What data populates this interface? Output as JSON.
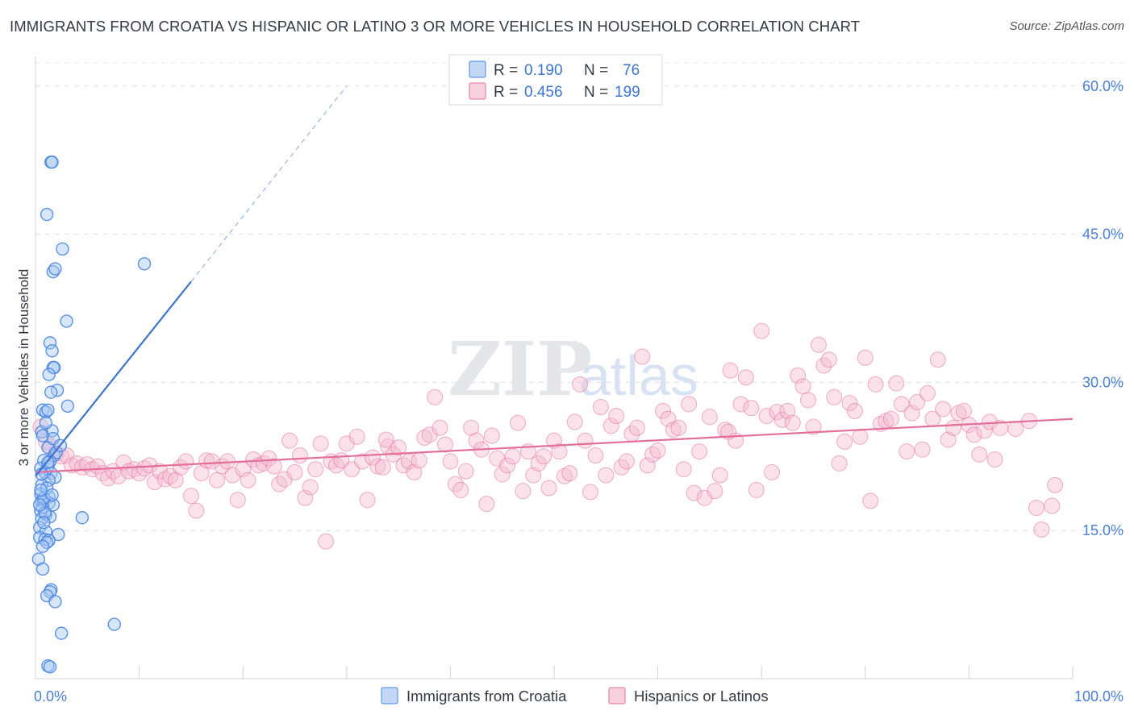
{
  "title": "IMMIGRANTS FROM CROATIA VS HISPANIC OR LATINO 3 OR MORE VEHICLES IN HOUSEHOLD CORRELATION CHART",
  "source": "Source: ZipAtlas.com",
  "watermark": {
    "zip": "ZIP",
    "atlas": "atlas"
  },
  "chart_data": {
    "type": "scatter",
    "xlabel": "",
    "ylabel": "3 or more Vehicles in Household",
    "xlim": [
      0,
      100
    ],
    "ylim": [
      0,
      63
    ],
    "x_tick_labels": [
      {
        "value": 0,
        "label": "0.0%"
      },
      {
        "value": 100,
        "label": "100.0%"
      }
    ],
    "y_ticks": [
      {
        "value": 15,
        "label": "15.0%"
      },
      {
        "value": 30,
        "label": "30.0%"
      },
      {
        "value": 45,
        "label": "45.0%"
      },
      {
        "value": 60,
        "label": "60.0%"
      }
    ],
    "grid": "horizontal dashed",
    "legend_position": "top-center",
    "series": [
      {
        "name": "Immigrants from Croatia",
        "legend_label": "Immigrants from Croatia",
        "color": "#4a86e0",
        "fill": "#a9c8f3",
        "stats": {
          "r_label": "R =",
          "r": "0.190",
          "n_label": "N =",
          "n": "76"
        },
        "trend": {
          "x1": 0,
          "y1": 20.5,
          "x2": 15,
          "y2": 40.2,
          "dash_to_x": 30,
          "dash_to_y": 60
        },
        "points": [
          [
            1.5,
            52.3
          ],
          [
            1.6,
            52.3
          ],
          [
            1.1,
            47.0
          ],
          [
            2.6,
            43.5
          ],
          [
            1.7,
            41.2
          ],
          [
            1.9,
            41.5
          ],
          [
            10.5,
            42.0
          ],
          [
            3.0,
            36.2
          ],
          [
            1.4,
            34.0
          ],
          [
            1.6,
            33.2
          ],
          [
            1.7,
            31.5
          ],
          [
            1.8,
            31.5
          ],
          [
            1.3,
            30.8
          ],
          [
            2.1,
            29.2
          ],
          [
            1.5,
            29.0
          ],
          [
            0.7,
            27.2
          ],
          [
            1.0,
            27.0
          ],
          [
            1.2,
            27.2
          ],
          [
            3.1,
            27.6
          ],
          [
            0.6,
            25.0
          ],
          [
            1.6,
            25.1
          ],
          [
            0.7,
            24.6
          ],
          [
            1.2,
            23.4
          ],
          [
            1.8,
            22.6
          ],
          [
            2.0,
            22.9
          ],
          [
            0.8,
            22.1
          ],
          [
            1.2,
            21.5
          ],
          [
            0.5,
            21.3
          ],
          [
            0.9,
            20.9
          ],
          [
            1.5,
            20.8
          ],
          [
            1.9,
            20.4
          ],
          [
            1.3,
            20.1
          ],
          [
            0.6,
            19.6
          ],
          [
            0.5,
            18.7
          ],
          [
            1.3,
            18.4
          ],
          [
            0.6,
            18.0
          ],
          [
            0.8,
            17.9
          ],
          [
            1.3,
            17.8
          ],
          [
            1.7,
            17.6
          ],
          [
            0.7,
            17.3
          ],
          [
            0.5,
            17.0
          ],
          [
            1.0,
            16.6
          ],
          [
            1.4,
            16.4
          ],
          [
            4.5,
            16.3
          ],
          [
            0.6,
            16.2
          ],
          [
            0.4,
            15.3
          ],
          [
            1.0,
            14.9
          ],
          [
            2.2,
            14.6
          ],
          [
            0.4,
            14.3
          ],
          [
            0.9,
            14.1
          ],
          [
            1.3,
            14.0
          ],
          [
            1.1,
            13.8
          ],
          [
            0.3,
            12.1
          ],
          [
            0.7,
            11.1
          ],
          [
            1.5,
            9.0
          ],
          [
            1.4,
            8.8
          ],
          [
            1.1,
            8.4
          ],
          [
            1.9,
            7.8
          ],
          [
            7.6,
            5.5
          ],
          [
            2.5,
            4.6
          ],
          [
            1.2,
            1.3
          ],
          [
            1.4,
            1.2
          ],
          [
            0.8,
            18.3
          ],
          [
            1.1,
            19.3
          ],
          [
            0.6,
            20.7
          ],
          [
            1.4,
            22.0
          ],
          [
            0.9,
            16.8
          ],
          [
            0.5,
            19.1
          ],
          [
            1.0,
            25.9
          ],
          [
            1.7,
            24.3
          ],
          [
            0.4,
            17.6
          ],
          [
            1.6,
            18.6
          ],
          [
            0.8,
            15.8
          ],
          [
            1.2,
            21.9
          ],
          [
            2.4,
            23.6
          ],
          [
            0.7,
            13.4
          ]
        ]
      },
      {
        "name": "Hispanics or Latinos",
        "legend_label": "Hispanics or Latinos",
        "color": "#e3709a",
        "fill": "#f5bcd0",
        "stats": {
          "r_label": "R =",
          "r": "0.456",
          "n_label": "N =",
          "n": "199"
        },
        "trend": {
          "x1": 0,
          "y1": 20.9,
          "x2": 100,
          "y2": 26.3
        },
        "points": [
          [
            0.5,
            25.5
          ],
          [
            1.0,
            24.0
          ],
          [
            1.5,
            23.5
          ],
          [
            2.0,
            22.8
          ],
          [
            2.5,
            22.5
          ],
          [
            3.0,
            22.6
          ],
          [
            3.5,
            21.6
          ],
          [
            4.0,
            21.8
          ],
          [
            4.5,
            21.4
          ],
          [
            5.0,
            21.7
          ],
          [
            5.5,
            21.2
          ],
          [
            6.0,
            21.5
          ],
          [
            6.5,
            20.8
          ],
          [
            7.0,
            20.3
          ],
          [
            7.5,
            21.0
          ],
          [
            8.0,
            20.5
          ],
          [
            8.5,
            21.9
          ],
          [
            9.0,
            21.0
          ],
          [
            9.5,
            21.2
          ],
          [
            10.0,
            20.8
          ],
          [
            10.5,
            21.3
          ],
          [
            11.0,
            21.6
          ],
          [
            11.5,
            19.9
          ],
          [
            12.0,
            21.0
          ],
          [
            12.5,
            20.2
          ],
          [
            13.0,
            20.5
          ],
          [
            13.5,
            20.1
          ],
          [
            14.0,
            21.4
          ],
          [
            14.5,
            22.0
          ],
          [
            15.0,
            18.5
          ],
          [
            15.5,
            17.0
          ],
          [
            16.0,
            20.8
          ],
          [
            16.5,
            22.1
          ],
          [
            17.0,
            22.0
          ],
          [
            17.5,
            20.1
          ],
          [
            18.0,
            21.5
          ],
          [
            18.5,
            22.0
          ],
          [
            19.0,
            20.6
          ],
          [
            19.5,
            18.1
          ],
          [
            20.0,
            21.2
          ],
          [
            20.5,
            20.1
          ],
          [
            21.0,
            22.2
          ],
          [
            21.5,
            21.6
          ],
          [
            22.0,
            21.8
          ],
          [
            22.5,
            22.3
          ],
          [
            23.0,
            21.5
          ],
          [
            23.5,
            19.7
          ],
          [
            24.0,
            20.2
          ],
          [
            24.5,
            24.1
          ],
          [
            25.0,
            20.9
          ],
          [
            25.5,
            22.6
          ],
          [
            26.0,
            18.3
          ],
          [
            26.5,
            19.4
          ],
          [
            27.0,
            21.2
          ],
          [
            27.5,
            23.8
          ],
          [
            28.0,
            13.9
          ],
          [
            28.5,
            22.0
          ],
          [
            29.0,
            21.6
          ],
          [
            29.5,
            22.1
          ],
          [
            30.0,
            23.8
          ],
          [
            30.5,
            21.2
          ],
          [
            31.0,
            24.5
          ],
          [
            31.5,
            22.0
          ],
          [
            32.0,
            18.1
          ],
          [
            32.5,
            22.4
          ],
          [
            33.0,
            21.5
          ],
          [
            33.5,
            21.4
          ],
          [
            34.0,
            23.5
          ],
          [
            34.5,
            22.7
          ],
          [
            35.0,
            23.4
          ],
          [
            35.5,
            21.6
          ],
          [
            36.0,
            22.0
          ],
          [
            36.5,
            20.9
          ],
          [
            37.0,
            22.1
          ],
          [
            37.5,
            24.4
          ],
          [
            38.0,
            24.7
          ],
          [
            38.5,
            28.5
          ],
          [
            39.0,
            25.4
          ],
          [
            39.5,
            23.7
          ],
          [
            40.0,
            22.0
          ],
          [
            40.5,
            19.7
          ],
          [
            41.0,
            19.1
          ],
          [
            41.5,
            21.0
          ],
          [
            42.0,
            25.4
          ],
          [
            42.5,
            24.1
          ],
          [
            43.0,
            23.2
          ],
          [
            43.5,
            17.7
          ],
          [
            44.0,
            24.6
          ],
          [
            44.5,
            22.3
          ],
          [
            45.0,
            20.7
          ],
          [
            45.5,
            21.6
          ],
          [
            46.0,
            22.5
          ],
          [
            46.5,
            25.9
          ],
          [
            47.0,
            19.0
          ],
          [
            47.5,
            23.0
          ],
          [
            48.0,
            20.6
          ],
          [
            48.5,
            21.8
          ],
          [
            49.0,
            22.5
          ],
          [
            49.5,
            19.3
          ],
          [
            50.0,
            24.1
          ],
          [
            50.5,
            23.0
          ],
          [
            51.0,
            20.5
          ],
          [
            51.5,
            20.8
          ],
          [
            52.0,
            26.0
          ],
          [
            52.5,
            29.8
          ],
          [
            53.0,
            24.1
          ],
          [
            53.5,
            18.9
          ],
          [
            54.0,
            22.6
          ],
          [
            54.5,
            27.5
          ],
          [
            55.0,
            20.6
          ],
          [
            55.5,
            25.6
          ],
          [
            56.0,
            26.6
          ],
          [
            56.5,
            21.4
          ],
          [
            57.0,
            22.0
          ],
          [
            57.5,
            24.8
          ],
          [
            58.0,
            25.4
          ],
          [
            58.5,
            32.6
          ],
          [
            59.0,
            21.6
          ],
          [
            59.5,
            22.7
          ],
          [
            60.0,
            23.1
          ],
          [
            60.5,
            27.1
          ],
          [
            61.0,
            26.3
          ],
          [
            61.5,
            25.2
          ],
          [
            62.0,
            25.4
          ],
          [
            62.5,
            21.2
          ],
          [
            63.0,
            27.8
          ],
          [
            63.5,
            18.8
          ],
          [
            64.0,
            23.0
          ],
          [
            64.5,
            18.3
          ],
          [
            65.0,
            26.5
          ],
          [
            65.5,
            19.0
          ],
          [
            66.0,
            20.6
          ],
          [
            66.5,
            25.2
          ],
          [
            67.0,
            31.2
          ],
          [
            67.5,
            24.1
          ],
          [
            68.0,
            27.8
          ],
          [
            68.5,
            30.5
          ],
          [
            69.0,
            27.4
          ],
          [
            69.5,
            19.1
          ],
          [
            70.0,
            35.2
          ],
          [
            70.5,
            26.6
          ],
          [
            71.0,
            20.9
          ],
          [
            71.5,
            27.0
          ],
          [
            72.0,
            26.2
          ],
          [
            72.5,
            27.1
          ],
          [
            73.0,
            25.9
          ],
          [
            73.5,
            30.7
          ],
          [
            74.0,
            29.6
          ],
          [
            74.5,
            28.2
          ],
          [
            75.0,
            25.5
          ],
          [
            75.5,
            33.8
          ],
          [
            76.0,
            31.7
          ],
          [
            76.5,
            32.3
          ],
          [
            77.0,
            28.5
          ],
          [
            77.5,
            21.8
          ],
          [
            78.0,
            24.0
          ],
          [
            78.5,
            27.9
          ],
          [
            79.0,
            27.1
          ],
          [
            79.5,
            24.5
          ],
          [
            80.0,
            32.5
          ],
          [
            80.5,
            18.0
          ],
          [
            81.0,
            29.8
          ],
          [
            81.5,
            25.8
          ],
          [
            82.0,
            26.1
          ],
          [
            82.5,
            26.3
          ],
          [
            83.0,
            29.9
          ],
          [
            83.5,
            27.8
          ],
          [
            84.0,
            23.0
          ],
          [
            84.5,
            26.9
          ],
          [
            85.0,
            28.0
          ],
          [
            85.5,
            23.2
          ],
          [
            86.0,
            28.9
          ],
          [
            86.5,
            26.3
          ],
          [
            87.0,
            32.3
          ],
          [
            87.5,
            27.3
          ],
          [
            88.0,
            24.2
          ],
          [
            88.5,
            25.4
          ],
          [
            89.0,
            26.9
          ],
          [
            89.5,
            27.1
          ],
          [
            90.0,
            25.7
          ],
          [
            90.5,
            24.7
          ],
          [
            91.0,
            22.7
          ],
          [
            91.5,
            25.1
          ],
          [
            92.0,
            26.0
          ],
          [
            92.5,
            22.2
          ],
          [
            93.0,
            25.4
          ],
          [
            94.5,
            25.3
          ],
          [
            96.5,
            17.3
          ],
          [
            97.0,
            15.1
          ],
          [
            98.0,
            17.5
          ],
          [
            98.3,
            19.6
          ],
          [
            95.8,
            26.1
          ],
          [
            33.8,
            24.2
          ],
          [
            66.8,
            25.0
          ]
        ]
      }
    ]
  }
}
